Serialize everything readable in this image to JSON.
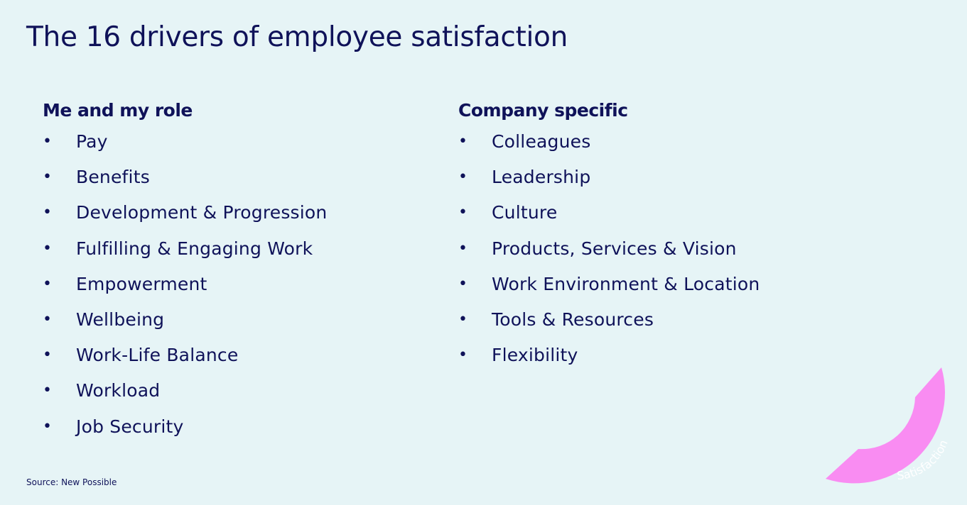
{
  "title": "The 16 drivers of employee satisfaction",
  "columns": [
    {
      "heading": "Me and my role",
      "items": [
        "Pay",
        "Benefits",
        "Development & Progression",
        "Fulfilling & Engaging Work",
        "Empowerment",
        "Wellbeing",
        "Work-Life Balance",
        "Workload",
        "Job Security"
      ]
    },
    {
      "heading": "Company specific",
      "items": [
        "Colleagues",
        "Leadership",
        "Culture",
        "Products, Services & Vision",
        "Work Environment & Location",
        "Tools & Resources",
        "Flexibility"
      ]
    }
  ],
  "bullet": "•",
  "source": "Source: New Possible",
  "badge": {
    "label": "Satisfaction",
    "color": "#f98cf2"
  },
  "colors": {
    "background": "#e6f4f6",
    "text": "#0f1259"
  }
}
